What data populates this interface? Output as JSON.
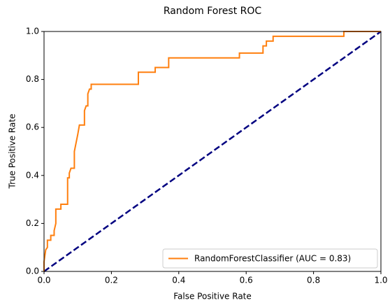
{
  "chart_data": {
    "type": "line",
    "title": "Random Forest ROC",
    "x_label": "False Positive Rate",
    "y_label": "True Positive Rate",
    "xlim": [
      0,
      1
    ],
    "ylim": [
      0,
      1
    ],
    "xticks": [
      {
        "value": 0,
        "label": "0.0"
      },
      0.2,
      0.4,
      0.6,
      0.8,
      {
        "value": 1,
        "label": "1.0"
      }
    ],
    "yticks": [
      {
        "value": 0,
        "label": "0.0"
      },
      0.2,
      0.4,
      0.6,
      0.8,
      {
        "value": 1,
        "label": "1.0"
      }
    ],
    "legend_position": "lower right",
    "series": [
      {
        "name": "RandomForestClassifier (AUC = 0.83)",
        "color": "#ff7f0e",
        "x": [
          0,
          0,
          0.005,
          0.01,
          0.01,
          0.02,
          0.02,
          0.03,
          0.03,
          0.035,
          0.035,
          0.05,
          0.05,
          0.07,
          0.07,
          0.075,
          0.075,
          0.08,
          0.09,
          0.09,
          0.1,
          0.105,
          0.12,
          0.12,
          0.125,
          0.13,
          0.13,
          0.135,
          0.14,
          0.14,
          0.28,
          0.28,
          0.33,
          0.33,
          0.37,
          0.37,
          0.58,
          0.58,
          0.65,
          0.65,
          0.66,
          0.66,
          0.68,
          0.68,
          0.89,
          0.89,
          1
        ],
        "y": [
          0,
          0.04,
          0.09,
          0.1,
          0.13,
          0.13,
          0.15,
          0.15,
          0.17,
          0.2,
          0.26,
          0.26,
          0.28,
          0.28,
          0.39,
          0.39,
          0.41,
          0.43,
          0.43,
          0.5,
          0.57,
          0.61,
          0.61,
          0.67,
          0.69,
          0.69,
          0.74,
          0.76,
          0.76,
          0.78,
          0.78,
          0.83,
          0.83,
          0.85,
          0.85,
          0.89,
          0.89,
          0.91,
          0.91,
          0.94,
          0.94,
          0.96,
          0.96,
          0.98,
          0.98,
          1,
          1
        ]
      }
    ],
    "diagonal": {
      "x": [
        0,
        1
      ],
      "y": [
        0,
        1
      ],
      "color": "#000080"
    }
  }
}
